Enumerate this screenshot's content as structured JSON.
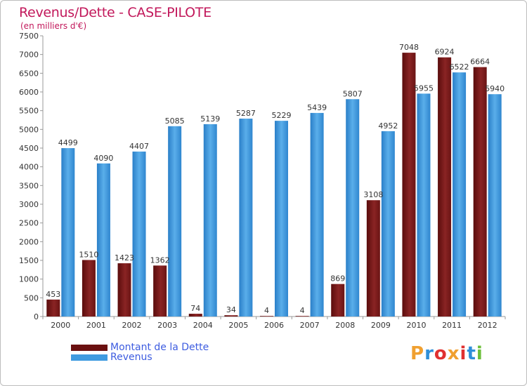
{
  "header": {
    "title": "Revenus/Dette - CASE-PILOTE",
    "subtitle": "(en milliers d'€)"
  },
  "logo": {
    "text": "Proxiti",
    "colors": [
      "#f0a030",
      "#2f8fd8",
      "#e03030",
      "#f0a030",
      "#e03030",
      "#2f8fd8",
      "#6cbf3a"
    ]
  },
  "chart_data": {
    "type": "bar",
    "title": "Revenus/Dette - CASE-PILOTE",
    "subtitle": "(en milliers d'€)",
    "xlabel": "",
    "ylabel": "",
    "ylim": [
      0,
      7500
    ],
    "ytick_step": 500,
    "grid": false,
    "legend_position": "bottom-left",
    "categories": [
      "2000",
      "2001",
      "2002",
      "2003",
      "2004",
      "2005",
      "2006",
      "2007",
      "2008",
      "2009",
      "2010",
      "2011",
      "2012"
    ],
    "series": [
      {
        "name": "Montant de la Dette",
        "color": "#7a1a1a",
        "values": [
          453,
          1510,
          1423,
          1362,
          74,
          34,
          4,
          4,
          869,
          3108,
          7048,
          6924,
          6664
        ],
        "labels": [
          "453",
          "1510",
          "1423",
          "1362",
          "74",
          "34",
          "4",
          "4",
          "869",
          "3108",
          "7048",
          "6924",
          "6664"
        ]
      },
      {
        "name": "Revenus",
        "color": "#3f9be0",
        "values": [
          4499,
          4090,
          4407,
          5085,
          5139,
          5287,
          5229,
          5439,
          5807,
          4952,
          5955,
          6522,
          5940
        ],
        "labels": [
          "4499",
          "4090",
          "4407",
          "5085",
          "5139",
          "5287",
          "5229",
          "5439",
          "5807",
          "4952",
          "5955",
          "6522",
          "5940"
        ]
      }
    ]
  }
}
